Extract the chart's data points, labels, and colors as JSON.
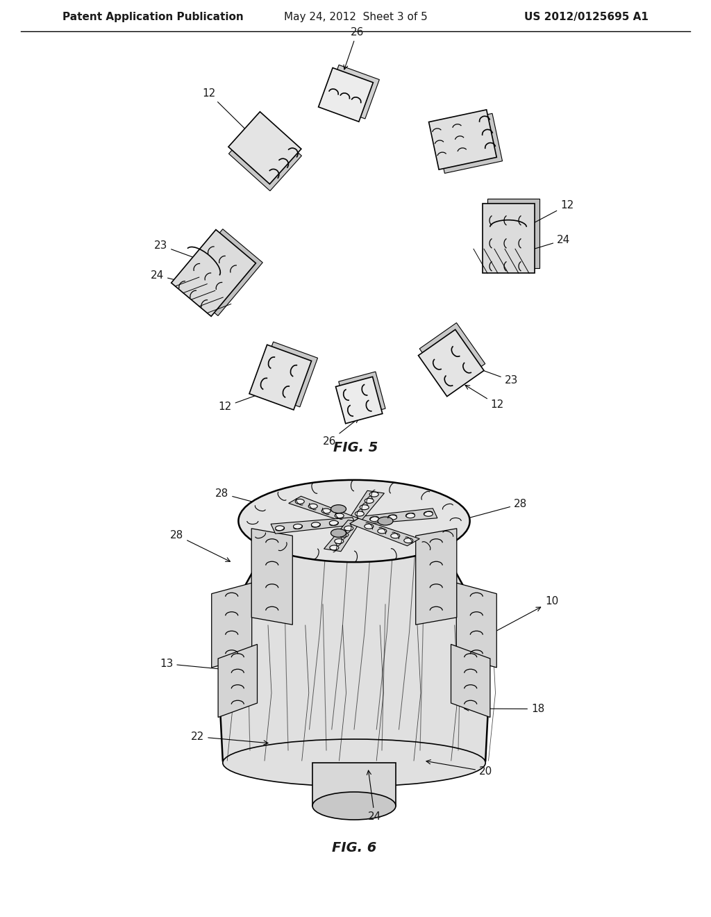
{
  "background_color": "#ffffff",
  "header_left": "Patent Application Publication",
  "header_center": "May 24, 2012  Sheet 3 of 5",
  "header_right": "US 2012/0125695 A1",
  "header_fontsize": 11,
  "fig5_label": "FIG. 5",
  "fig6_label": "FIG. 6",
  "line_color": "#000000",
  "text_color": "#1a1a1a",
  "annotation_fontsize": 11,
  "fig_label_fontsize": 14,
  "fig_label_fontweight": "bold",
  "R6": 215
}
